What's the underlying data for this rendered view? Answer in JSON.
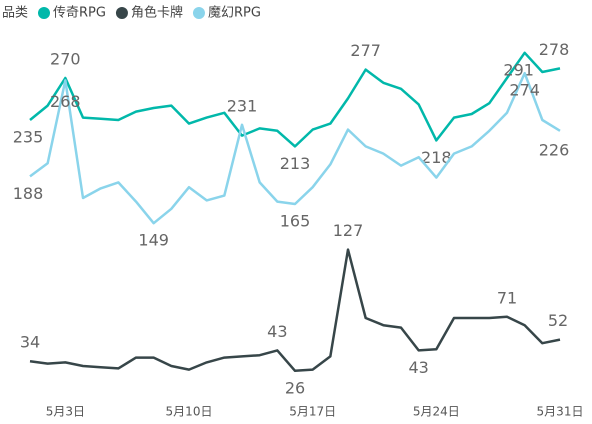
{
  "chart_data": {
    "type": "line",
    "legend_title": "品类",
    "categories": [
      null,
      null,
      "5月3日",
      null,
      null,
      null,
      null,
      null,
      null,
      "5月10日",
      null,
      null,
      null,
      null,
      null,
      null,
      "5月17日",
      null,
      null,
      null,
      null,
      null,
      null,
      "5月24日",
      null,
      null,
      null,
      null,
      null,
      null,
      "5月31日"
    ],
    "ylim": [
      0,
      320
    ],
    "series": [
      {
        "name": "传奇RPG",
        "color": "#01B8AA",
        "values": [
          235,
          247,
          270,
          237,
          236,
          235,
          242,
          245,
          247,
          232,
          237,
          241,
          222,
          228,
          226,
          213,
          227,
          232,
          253,
          277,
          266,
          261,
          248,
          218,
          237,
          240,
          249,
          270,
          291,
          275,
          278
        ],
        "value_labels": [
          "235",
          null,
          "270",
          null,
          null,
          null,
          null,
          null,
          null,
          null,
          null,
          null,
          null,
          null,
          null,
          "213",
          null,
          null,
          null,
          "277",
          null,
          null,
          null,
          "218",
          null,
          null,
          null,
          null,
          "291",
          null,
          "278"
        ]
      },
      {
        "name": "角色卡牌",
        "color": "#374649",
        "values": [
          34,
          32,
          33,
          30,
          29,
          28,
          37,
          37,
          30,
          27,
          33,
          37,
          38,
          39,
          43,
          26,
          27,
          38,
          127,
          70,
          64,
          62,
          43,
          44,
          70,
          70,
          70,
          71,
          64,
          49,
          52
        ],
        "value_labels": [
          "34",
          null,
          null,
          null,
          null,
          null,
          null,
          null,
          null,
          null,
          null,
          null,
          null,
          null,
          "43",
          "26",
          null,
          null,
          "127",
          null,
          null,
          null,
          "43",
          null,
          null,
          null,
          null,
          "71",
          null,
          null,
          "52"
        ]
      },
      {
        "name": "魔幻RPG",
        "color": "#8AD4EB",
        "values": [
          188,
          199,
          268,
          170,
          178,
          183,
          167,
          149,
          161,
          179,
          168,
          172,
          231,
          183,
          167,
          165,
          179,
          198,
          227,
          213,
          207,
          197,
          204,
          187,
          207,
          213,
          226,
          241,
          274,
          235,
          226
        ],
        "value_labels": [
          "188",
          null,
          "268",
          null,
          null,
          null,
          null,
          "149",
          null,
          null,
          null,
          null,
          "231",
          null,
          null,
          "165",
          null,
          null,
          null,
          null,
          null,
          null,
          null,
          null,
          null,
          null,
          null,
          null,
          "274",
          null,
          "226"
        ]
      }
    ]
  }
}
